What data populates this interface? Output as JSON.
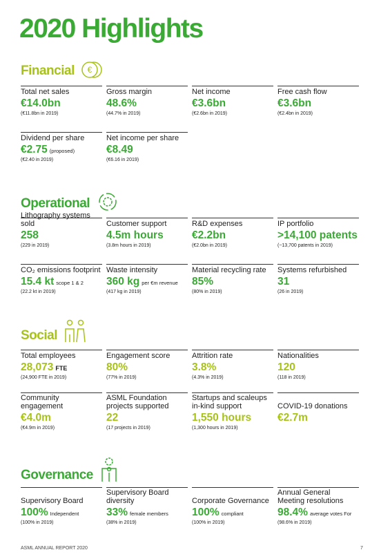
{
  "title": "2020 Highlights",
  "sections": [
    {
      "heading": "Financial",
      "rows": [
        [
          {
            "label": "Total net sales",
            "value": "€14.0bn",
            "prior": "(€11.8bn in 2019)"
          },
          {
            "label": "Gross margin",
            "value": "48.6%",
            "prior": "(44.7% in 2019)"
          },
          {
            "label": "Net income",
            "value": "€3.6bn",
            "prior": "(€2.6bn in 2019)"
          },
          {
            "label": "Free cash flow",
            "value": "€3.6bn",
            "prior": "(€2.4bn in 2019)"
          }
        ],
        [
          {
            "label": "Dividend per share",
            "value": "€2.75",
            "note": "(proposed)",
            "prior": "(€2.40 in 2019)"
          },
          {
            "label": "Net income per share",
            "value": "€8.49",
            "prior": "(€6.16 in 2019)"
          }
        ]
      ]
    },
    {
      "heading": "Operational",
      "rows": [
        [
          {
            "label": "Lithography systems sold",
            "value": "258",
            "prior": "(229 in 2019)"
          },
          {
            "label": "Customer support",
            "value": "4.5m hours",
            "prior": "(3.8m hours in 2019)"
          },
          {
            "label": "R&D expenses",
            "value": "€2.2bn",
            "prior": "(€2.0bn in 2019)"
          },
          {
            "label": "IP portfolio",
            "value": ">14,100 patents",
            "prior": "(~13,700 patents in 2019)"
          }
        ],
        [
          {
            "label": "CO₂ emissions footprint",
            "value": "15.4 kt",
            "note": "scope 1 & 2",
            "prior": "(22.2 kt in 2019)"
          },
          {
            "label": "Waste intensity",
            "value": "360 kg",
            "note": "per €m revenue",
            "prior": "(417 kg in 2019)"
          },
          {
            "label": "Material recycling rate",
            "value": "85%",
            "prior": "(80% in 2019)"
          },
          {
            "label": "Systems refurbished",
            "value": "31",
            "prior": "(26 in 2019)"
          }
        ]
      ]
    },
    {
      "heading": "Social",
      "rows": [
        [
          {
            "label": "Total employees",
            "value": "28,073",
            "note": "FTE",
            "prior": "(24,900 FTE in 2019)"
          },
          {
            "label": "Engagement score",
            "value": "80%",
            "prior": "(77% in 2019)"
          },
          {
            "label": "Attrition rate",
            "value": "3.8%",
            "prior": "(4.3% in 2019)"
          },
          {
            "label": "Nationalities",
            "value": "120",
            "prior": "(118 in 2019)"
          }
        ],
        [
          {
            "label": "Community engagement",
            "value": "€4.0m",
            "prior": "(€4.9m in 2019)"
          },
          {
            "label": "ASML Foundation projects supported",
            "value": "22",
            "prior": "(17 projects in 2019)"
          },
          {
            "label": "Startups and scaleups in-kind support",
            "value": "1,550 hours",
            "prior": "(1,300 hours in 2019)"
          },
          {
            "label": "COVID-19 donations",
            "value": "€2.7m"
          }
        ]
      ]
    },
    {
      "heading": "Governance",
      "rows": [
        [
          {
            "label": "Supervisory Board",
            "value": "100%",
            "note": "Independent",
            "prior": "(100% in 2019)"
          },
          {
            "label": "Supervisory Board diversity",
            "value": "33%",
            "note": "female members",
            "prior": "(38% in 2019)"
          },
          {
            "label": "Corporate Governance",
            "value": "100%",
            "note": "compliant",
            "prior": "(100% in 2019)"
          },
          {
            "label": "Annual General Meeting resolutions",
            "value": "98.4%",
            "note": "average votes For",
            "prior": "(98.6% in 2019)"
          }
        ]
      ]
    }
  ],
  "footer": {
    "left": "ASML ANNUAL REPORT 2020",
    "page": "7"
  }
}
